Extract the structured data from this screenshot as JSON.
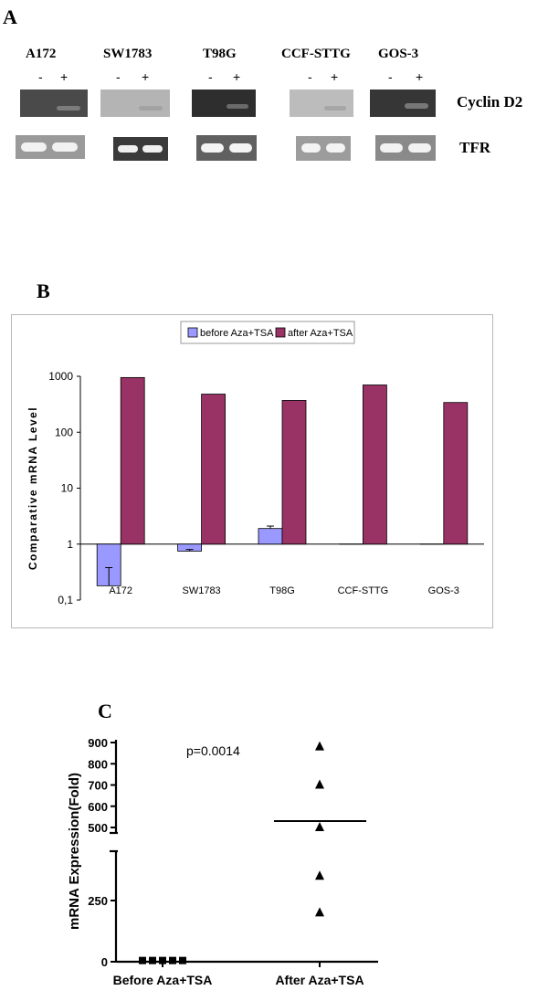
{
  "panelA": {
    "letter": "A",
    "cells": [
      {
        "name": "A172",
        "minus": "-",
        "plus": "+"
      },
      {
        "name": "SW1783",
        "minus": "-",
        "plus": "+"
      },
      {
        "name": "T98G",
        "minus": "-",
        "plus": "+"
      },
      {
        "name": "CCF-STTG",
        "minus": "-",
        "plus": "+"
      },
      {
        "name": "GOS-3",
        "minus": "-",
        "plus": "+"
      }
    ],
    "genes": [
      "Cyclin D2",
      "TFR"
    ],
    "colors": {
      "cyclin_gels": [
        "#4a4a4a",
        "#b4b4b4",
        "#2e2e2e",
        "#bcbcbc",
        "#363636"
      ],
      "tfr_gels": [
        "#9a9a9a",
        "#3a3a3a",
        "#606060",
        "#9c9c9c",
        "#8a8a8a"
      ]
    }
  },
  "panelB": {
    "letter": "B",
    "chart_data": {
      "type": "bar",
      "categories": [
        "A172",
        "SW1783",
        "T98G",
        "CCF-STTG",
        "GOS-3"
      ],
      "series": [
        {
          "name": "before Aza+TSA",
          "values": [
            0.18,
            0.75,
            1.9,
            1,
            1
          ],
          "errors": [
            0.2,
            0.05,
            0.2,
            0,
            0
          ],
          "color": "#9999ff"
        },
        {
          "name": "after Aza+TSA",
          "values": [
            950,
            480,
            370,
            700,
            340
          ],
          "color": "#993366"
        }
      ],
      "ylabel": "Comparative mRNA Level",
      "yscale": "log",
      "ylim": [
        0.1,
        1000
      ],
      "yticks": [
        "1000",
        "100",
        "10",
        "1",
        "0,1"
      ],
      "legend_position": "top"
    }
  },
  "panelC": {
    "letter": "C",
    "chart_data": {
      "type": "scatter",
      "categories": [
        "Before Aza+TSA",
        "After Aza+TSA"
      ],
      "series": [
        {
          "name": "Before Aza+TSA",
          "values": [
            5,
            5,
            5,
            5,
            5
          ],
          "marker": "square"
        },
        {
          "name": "After Aza+TSA",
          "values": [
            880,
            700,
            500,
            350,
            200
          ],
          "marker": "triangle",
          "mean": 530
        }
      ],
      "ylabel": "mRNA Expression(Fold)",
      "annotation": "p=0.0014",
      "axis_break": [
        440,
        480
      ],
      "lower_ticks": [
        "0",
        "250"
      ],
      "upper_ticks": [
        "500",
        "600",
        "700",
        "800",
        "900"
      ]
    }
  }
}
